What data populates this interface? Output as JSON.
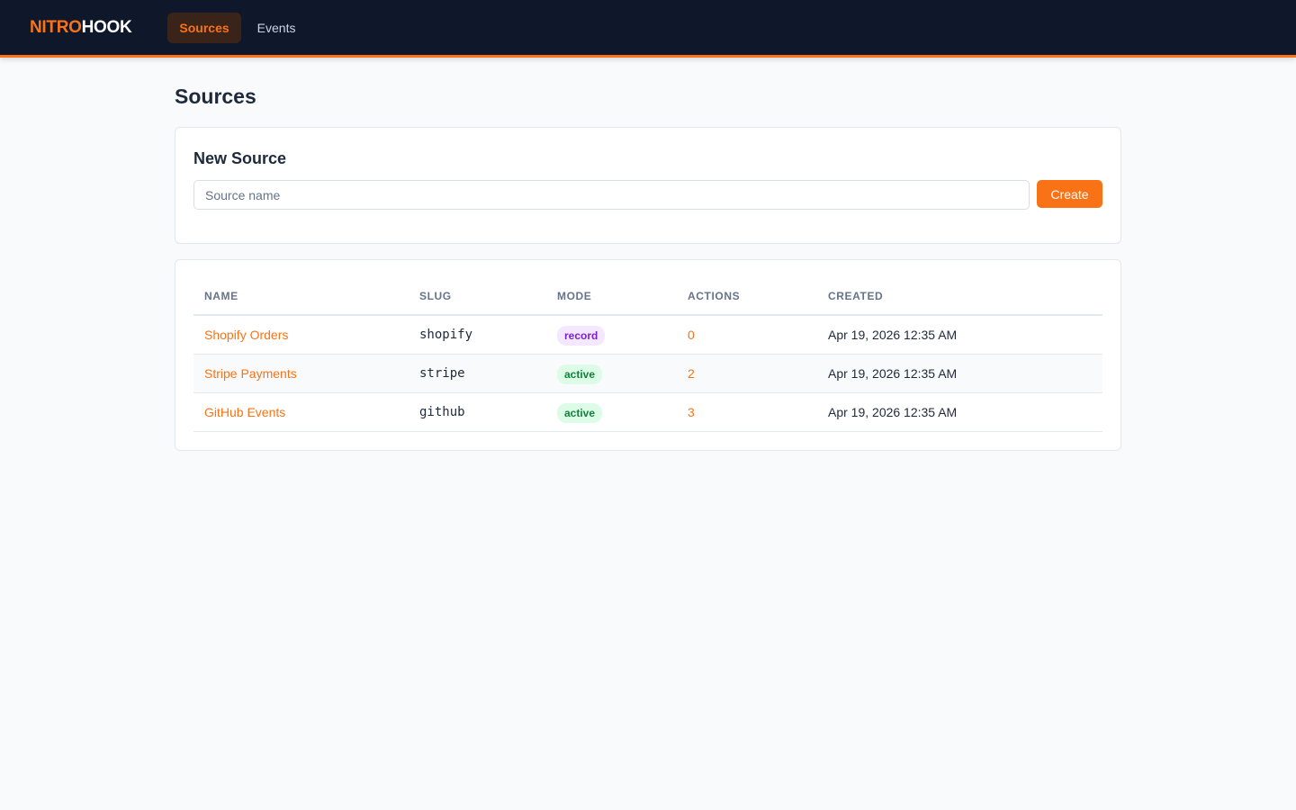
{
  "nav": {
    "brand": {
      "first": "NITRO",
      "second": "HOOK"
    },
    "links": [
      "Sources",
      "Events"
    ]
  },
  "page": {
    "title": "Sources"
  },
  "form": {
    "title": "New Source",
    "placeholder": "Source name",
    "button": "Create"
  },
  "table": {
    "headers": [
      "NAME",
      "SLUG",
      "MODE",
      "ACTIONS",
      "CREATED"
    ],
    "rows": [
      [
        "Shopify Orders",
        "shopify",
        "record",
        0,
        "Apr 19, 2026 12:35 AM"
      ],
      [
        "Stripe Payments",
        "stripe",
        "active",
        2,
        "Apr 19, 2026 12:35 AM"
      ],
      [
        "GitHub Events",
        "github",
        "active",
        3,
        "Apr 19, 2026 12:35 AM"
      ]
    ]
  }
}
